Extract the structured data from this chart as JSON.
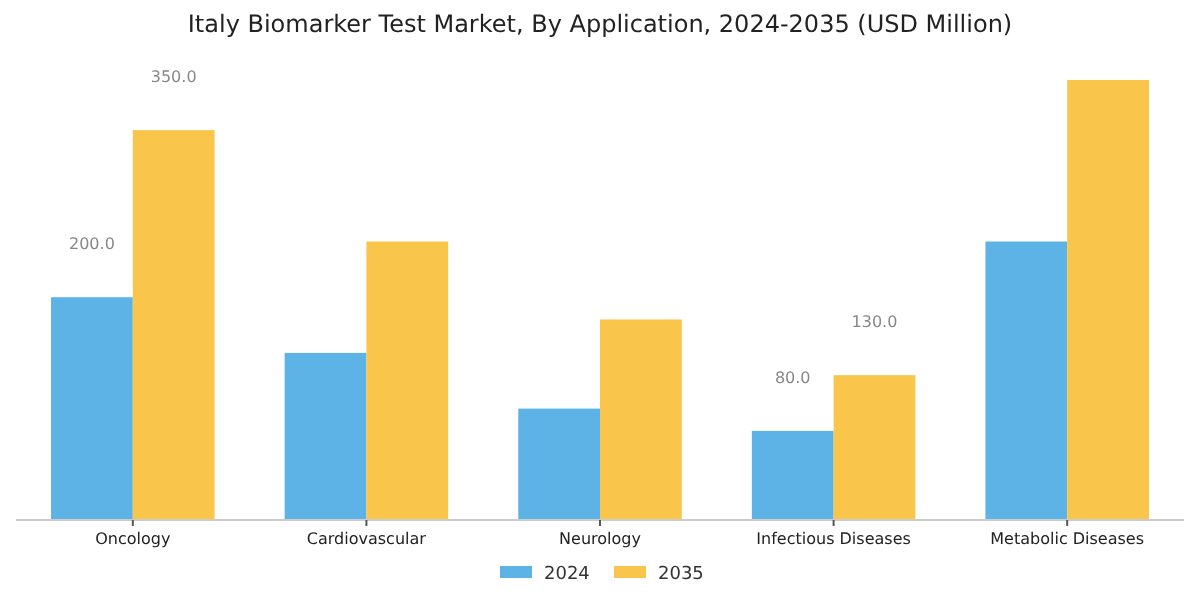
{
  "chart_data": {
    "type": "bar",
    "title": "Italy Biomarker Test Market, By Application, 2024-2035 (USD Million)",
    "categories": [
      "Oncology",
      "Cardiovascular",
      "Neurology",
      "Infectious Diseases",
      "Metabolic Diseases"
    ],
    "series": [
      {
        "name": "2024",
        "color": "#5db3e6",
        "values": [
          200,
          150,
          100,
          80,
          250
        ],
        "value_labels": [
          "200.0",
          null,
          null,
          "80.0",
          null
        ]
      },
      {
        "name": "2035",
        "color": "#f9c54a",
        "values": [
          350,
          250,
          180,
          130,
          395
        ],
        "value_labels": [
          "350.0",
          null,
          null,
          "130.0",
          null
        ]
      }
    ],
    "tick_labels": "x",
    "legend": "bottom"
  }
}
